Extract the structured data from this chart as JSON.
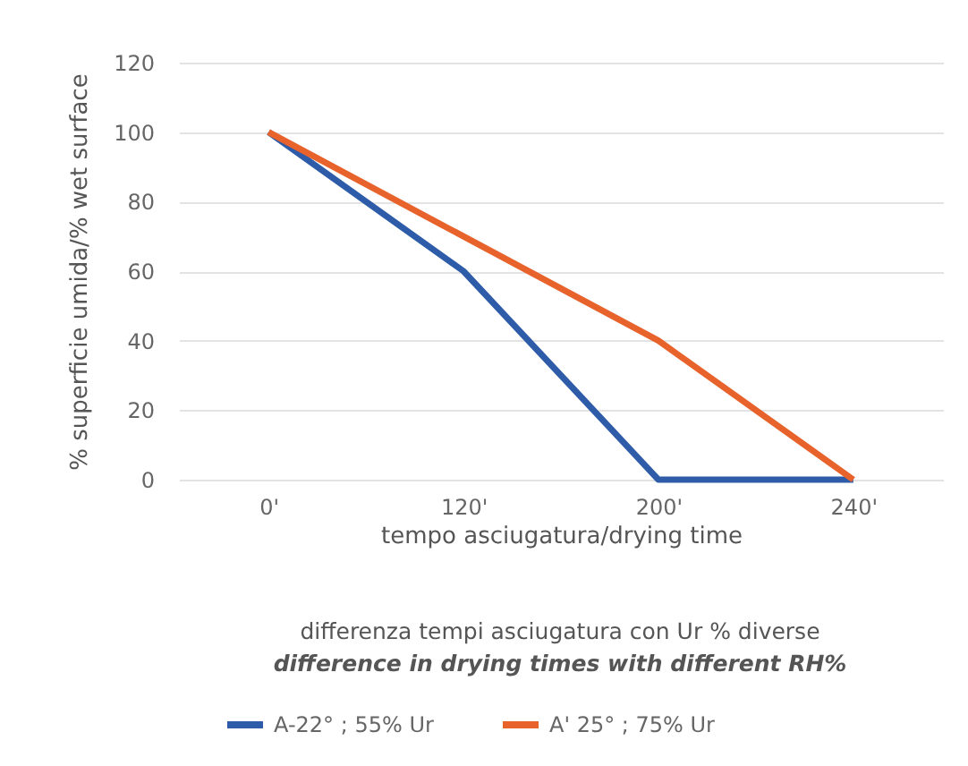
{
  "chart_data": {
    "type": "line",
    "categories": [
      "0'",
      "120'",
      "200'",
      "240'"
    ],
    "series": [
      {
        "name": "A-22° ; 55% Ur",
        "color": "#2e5ca8",
        "values": [
          100,
          60,
          0,
          0
        ]
      },
      {
        "name": "A' 25° ; 75% Ur",
        "color": "#e8622c",
        "values": [
          100,
          70,
          40,
          0
        ]
      }
    ],
    "xlabel": "tempo asciugatura/drying time",
    "ylabel": "% superficie umida/% wet surface",
    "annotations": [
      "differenza tempi asciugatura con Ur % diverse",
      "difference in drying times with different RH%"
    ],
    "ylim": [
      0,
      120
    ],
    "yticks": [
      0,
      20,
      40,
      60,
      80,
      100,
      120
    ],
    "grid": "y",
    "legend": "bottom",
    "marker": "none",
    "line_style": "solid"
  }
}
